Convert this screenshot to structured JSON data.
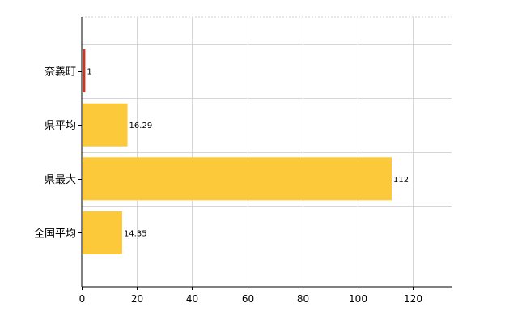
{
  "chart_data": {
    "type": "bar",
    "orientation": "horizontal",
    "categories": [
      "奈義町",
      "県平均",
      "県最大",
      "全国平均"
    ],
    "values": [
      1,
      16.29,
      112,
      14.35
    ],
    "data_labels": [
      "1",
      "16.29",
      "112",
      "14.35"
    ],
    "colors": [
      "#c0392b",
      "#fcc93b",
      "#fcc93b",
      "#fcc93b"
    ],
    "xlim": [
      0,
      134
    ],
    "xticks": [
      0,
      20,
      40,
      60,
      80,
      100,
      120
    ],
    "grid": true,
    "title": "",
    "xlabel": "",
    "ylabel": ""
  }
}
